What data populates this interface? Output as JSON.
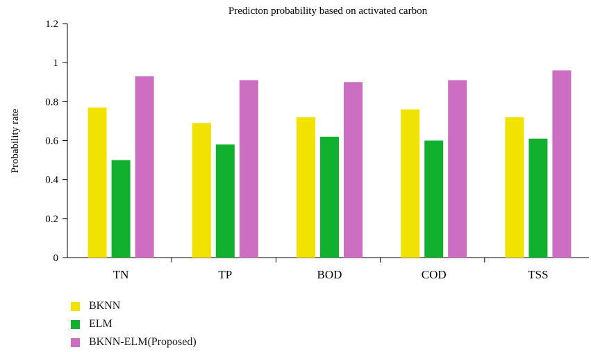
{
  "chart_data": {
    "type": "bar",
    "title": "Predicton probability based on activated carbon",
    "xlabel": "",
    "ylabel": "Probability rate",
    "categories": [
      "TN",
      "TP",
      "BOD",
      "COD",
      "TSS"
    ],
    "ylim": [
      0,
      1.2
    ],
    "yticks": [
      0,
      0.2,
      0.4,
      0.6,
      0.8,
      1,
      1.2
    ],
    "ytick_labels": [
      "0",
      "0.2",
      "0.4",
      "0.6",
      "0.8",
      "1",
      "1.2"
    ],
    "grid": false,
    "legend_position": "bottom-left",
    "series": [
      {
        "name": "BKNN",
        "color": "#f2e200",
        "values": [
          0.77,
          0.69,
          0.72,
          0.76,
          0.72
        ]
      },
      {
        "name": "ELM",
        "color": "#11b02e",
        "values": [
          0.5,
          0.58,
          0.62,
          0.6,
          0.61
        ]
      },
      {
        "name": "BKNN-ELM(Proposed)",
        "color": "#cc6ec1",
        "values": [
          0.93,
          0.91,
          0.9,
          0.91,
          0.96
        ]
      }
    ]
  }
}
